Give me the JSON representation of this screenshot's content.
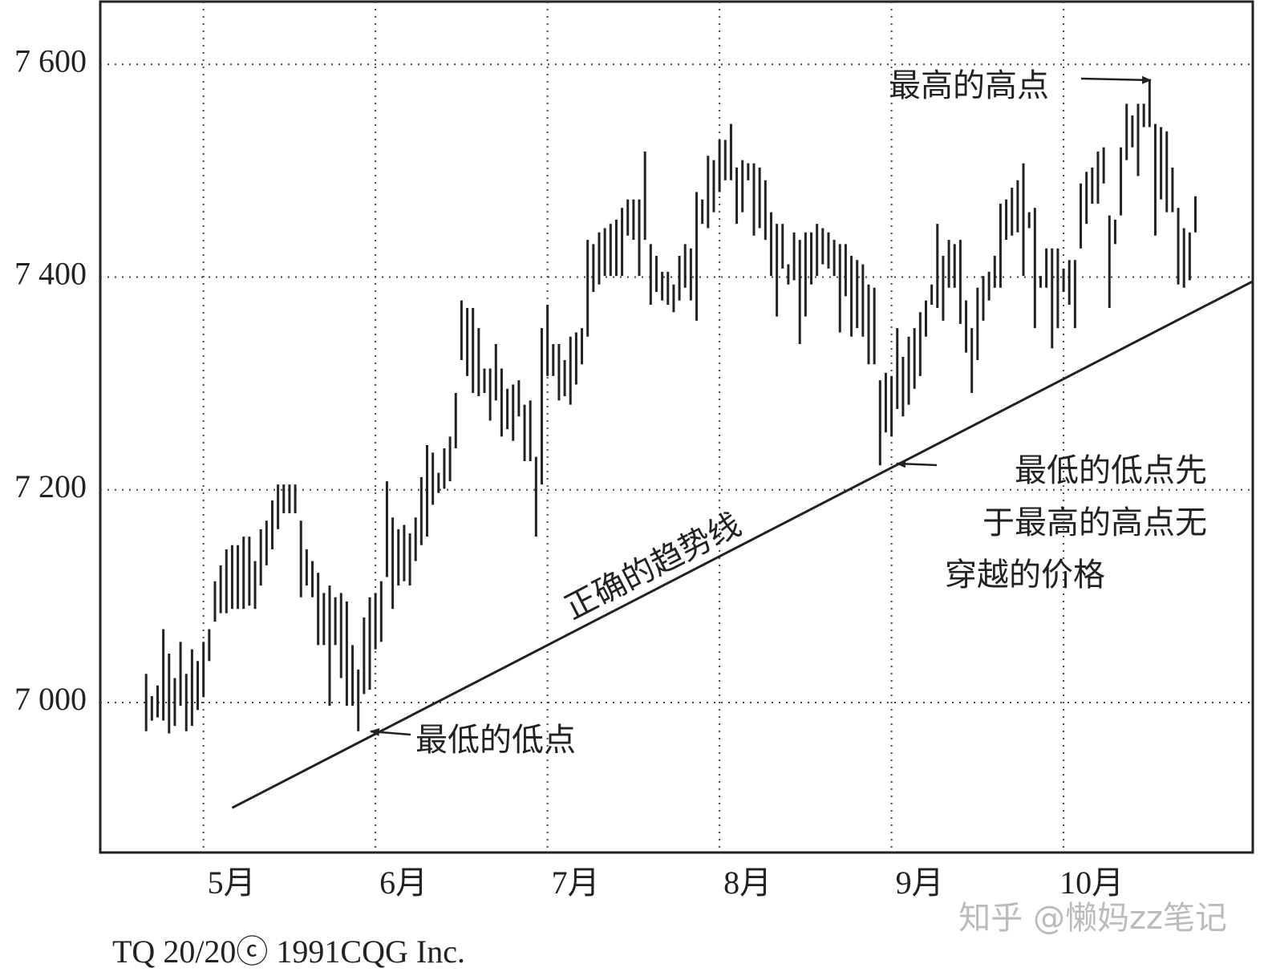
{
  "chart_data": {
    "type": "range-bar",
    "color": "#222222",
    "grid": true,
    "ylim": [
      6859,
      7659
    ],
    "yticks": [
      {
        "value": 7000,
        "label": "7 000"
      },
      {
        "value": 7200,
        "label": "7 200"
      },
      {
        "value": 7400,
        "label": "7 400"
      },
      {
        "value": 7600,
        "label": "7 600"
      }
    ],
    "xlim": [
      -8,
      193
    ],
    "xticks": [
      {
        "value": 10,
        "label": "5月"
      },
      {
        "value": 40,
        "label": "6月"
      },
      {
        "value": 70,
        "label": "7月"
      },
      {
        "value": 100,
        "label": "8月"
      },
      {
        "value": 130,
        "label": "9月"
      },
      {
        "value": 160,
        "label": "10月"
      }
    ],
    "high": [
      7027,
      7006,
      7016,
      7069,
      7046,
      7023,
      7057,
      7027,
      7050,
      7039,
      7057,
      7069,
      7114,
      7129,
      7144,
      7148,
      7148,
      7156,
      7156,
      7133,
      7163,
      7171,
      7190,
      7205,
      7205,
      7205,
      7205,
      7171,
      7144,
      7133,
      7122,
      7103,
      7110,
      7099,
      7103,
      7095,
      7054,
      7031,
      7080,
      7099,
      7103,
      7114,
      7208,
      7174,
      7163,
      7167,
      7159,
      7174,
      7212,
      7242,
      7235,
      7216,
      7239,
      7250,
      7291,
      7378,
      7371,
      7371,
      7352,
      7314,
      7314,
      7337,
      7314,
      7295,
      7299,
      7303,
      7280,
      7284,
      7231,
      7352,
      7374,
      7337,
      7337,
      7322,
      7344,
      7348,
      7352,
      7435,
      7431,
      7442,
      7446,
      7450,
      7454,
      7465,
      7473,
      7473,
      7473,
      7518,
      7431,
      7420,
      7405,
      7405,
      7393,
      7420,
      7431,
      7427,
      7480,
      7473,
      7514,
      7510,
      7529,
      7529,
      7544,
      7503,
      7510,
      7507,
      7507,
      7503,
      7491,
      7461,
      7450,
      7450,
      7412,
      7442,
      7435,
      7442,
      7442,
      7450,
      7446,
      7442,
      7435,
      7431,
      7431,
      7420,
      7416,
      7412,
      7393,
      7390,
      7303,
      7310,
      7307,
      7352,
      7325,
      7344,
      7352,
      7367,
      7378,
      7393,
      7450,
      7420,
      7435,
      7431,
      7435,
      7378,
      7352,
      7390,
      7401,
      7405,
      7420,
      7469,
      7473,
      7484,
      7491,
      7507,
      7461,
      7465,
      7401,
      7427,
      7427,
      7427,
      7408,
      7416,
      7416,
      7488,
      7499,
      7503,
      7518,
      7522,
      7458,
      7454,
      7522,
      7563,
      7552,
      7563,
      7563,
      7586,
      7544,
      7541,
      7537,
      7503,
      7465,
      7446,
      7442,
      7476
    ],
    "low": [
      6973,
      6983,
      6986,
      6983,
      6971,
      6978,
      6997,
      6973,
      6978,
      6993,
      7005,
      7039,
      7076,
      7084,
      7084,
      7088,
      7088,
      7088,
      7091,
      7088,
      7110,
      7129,
      7144,
      7163,
      7178,
      7178,
      7178,
      7099,
      7110,
      7099,
      7054,
      7054,
      6997,
      7054,
      7023,
      6997,
      6997,
      6973,
      7008,
      7012,
      7050,
      7057,
      7118,
      7088,
      7110,
      7114,
      7110,
      7133,
      7148,
      7156,
      7186,
      7197,
      7201,
      7208,
      7239,
      7322,
      7307,
      7291,
      7288,
      7291,
      7265,
      7284,
      7250,
      7257,
      7246,
      7269,
      7227,
      7227,
      7156,
      7205,
      7307,
      7307,
      7284,
      7288,
      7280,
      7299,
      7318,
      7344,
      7386,
      7393,
      7401,
      7401,
      7401,
      7401,
      7439,
      7435,
      7401,
      7435,
      7374,
      7386,
      7378,
      7374,
      7367,
      7378,
      7390,
      7378,
      7359,
      7450,
      7446,
      7461,
      7480,
      7491,
      7491,
      7450,
      7461,
      7491,
      7439,
      7446,
      7435,
      7401,
      7363,
      7408,
      7393,
      7397,
      7337,
      7363,
      7393,
      7401,
      7412,
      7408,
      7401,
      7348,
      7382,
      7344,
      7352,
      7344,
      7318,
      7318,
      7223,
      7254,
      7250,
      7276,
      7269,
      7280,
      7295,
      7307,
      7344,
      7374,
      7371,
      7359,
      7390,
      7390,
      7356,
      7329,
      7291,
      7322,
      7359,
      7378,
      7390,
      7390,
      7435,
      7439,
      7442,
      7401,
      7446,
      7352,
      7390,
      7390,
      7333,
      7352,
      7386,
      7374,
      7352,
      7427,
      7450,
      7469,
      7469,
      7488,
      7371,
      7431,
      7458,
      7510,
      7522,
      7495,
      7541,
      7541,
      7439,
      7473,
      7461,
      7461,
      7393,
      7390,
      7397,
      7442
    ],
    "trendline": {
      "label": "正确的趋势线",
      "x": [
        15,
        193
      ],
      "y": [
        6901,
        7396
      ]
    },
    "annotations": [
      {
        "text": "最高的高点"
      },
      {
        "text": "最低的低点"
      },
      {
        "lines": [
          "最低的低点先",
          "于最高的高点无",
          "穿越的价格"
        ]
      }
    ],
    "source": "TQ 20/20ⓒ 1991CQG Inc.",
    "watermark": "知乎 @懒妈zz笔记"
  }
}
